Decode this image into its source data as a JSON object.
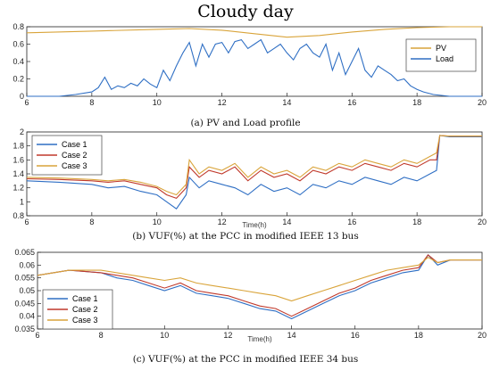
{
  "title": "Cloudy day",
  "colors": {
    "pv": "#D9A43A",
    "load": "#2F6FC4",
    "case1": "#2F6FC4",
    "case2": "#C0392B",
    "case3": "#D9A43A"
  },
  "chart_data": [
    {
      "type": "line",
      "caption": "(a) PV and Load profile",
      "xlabel": "",
      "ylabel": "",
      "xlim": [
        6,
        20
      ],
      "ylim": [
        0,
        0.8
      ],
      "xticks": [
        "6",
        "8",
        "10",
        "12",
        "14",
        "16",
        "18",
        "20"
      ],
      "yticks": [
        "0",
        "0.2",
        "0.4",
        "0.6",
        "0.8"
      ],
      "grid": false,
      "legend": "right",
      "series": [
        {
          "name": "PV",
          "x": [
            6,
            8,
            10,
            11,
            12,
            13,
            14,
            15,
            16,
            17,
            18,
            19,
            20
          ],
          "y": [
            0.73,
            0.75,
            0.77,
            0.78,
            0.76,
            0.72,
            0.68,
            0.7,
            0.74,
            0.77,
            0.79,
            0.8,
            0.8
          ]
        },
        {
          "name": "Load",
          "x": [
            6,
            7,
            7.5,
            8,
            8.2,
            8.4,
            8.6,
            8.8,
            9,
            9.2,
            9.4,
            9.6,
            9.8,
            10,
            10.2,
            10.4,
            10.6,
            10.8,
            11,
            11.2,
            11.4,
            11.6,
            11.8,
            12,
            12.2,
            12.4,
            12.6,
            12.8,
            13,
            13.2,
            13.4,
            13.6,
            13.8,
            14,
            14.2,
            14.4,
            14.6,
            14.8,
            15,
            15.2,
            15.4,
            15.6,
            15.8,
            16,
            16.2,
            16.4,
            16.6,
            16.8,
            17,
            17.2,
            17.4,
            17.6,
            17.8,
            18,
            18.2,
            18.5,
            19,
            20
          ],
          "y": [
            0,
            0,
            0.02,
            0.05,
            0.1,
            0.22,
            0.08,
            0.12,
            0.1,
            0.15,
            0.12,
            0.2,
            0.14,
            0.1,
            0.3,
            0.18,
            0.35,
            0.5,
            0.62,
            0.35,
            0.6,
            0.45,
            0.6,
            0.62,
            0.5,
            0.63,
            0.65,
            0.55,
            0.6,
            0.65,
            0.5,
            0.55,
            0.6,
            0.5,
            0.42,
            0.55,
            0.6,
            0.5,
            0.45,
            0.6,
            0.3,
            0.5,
            0.25,
            0.4,
            0.55,
            0.3,
            0.22,
            0.35,
            0.3,
            0.25,
            0.18,
            0.2,
            0.12,
            0.08,
            0.05,
            0.02,
            0,
            0
          ]
        }
      ]
    },
    {
      "type": "line",
      "caption": "(b) VUF(%) at the PCC in modified IEEE 13 bus",
      "xlabel": "Time(h)",
      "ylabel": "",
      "xlim": [
        6,
        20
      ],
      "ylim": [
        0.8,
        2.0
      ],
      "xticks": [
        "6",
        "8",
        "10",
        "12",
        "14",
        "16",
        "18",
        "20"
      ],
      "yticks": [
        "0.8",
        "1",
        "1.2",
        "1.4",
        "1.6",
        "1.8",
        "2"
      ],
      "grid": false,
      "legend": "top-left",
      "series": [
        {
          "name": "Case 1",
          "x": [
            6,
            7,
            8,
            8.5,
            9,
            9.5,
            10,
            10.3,
            10.6,
            10.9,
            11,
            11.3,
            11.6,
            12,
            12.4,
            12.8,
            13.2,
            13.6,
            14,
            14.4,
            14.8,
            15.2,
            15.6,
            16,
            16.4,
            16.8,
            17.2,
            17.6,
            18,
            18.4,
            18.6,
            18.7,
            19,
            20
          ],
          "y": [
            1.3,
            1.28,
            1.25,
            1.2,
            1.22,
            1.15,
            1.1,
            1.0,
            0.9,
            1.1,
            1.35,
            1.2,
            1.3,
            1.25,
            1.2,
            1.1,
            1.25,
            1.15,
            1.2,
            1.1,
            1.25,
            1.2,
            1.3,
            1.25,
            1.35,
            1.3,
            1.25,
            1.35,
            1.3,
            1.4,
            1.45,
            1.95,
            1.93,
            1.93
          ]
        },
        {
          "name": "Case 2",
          "x": [
            6,
            7,
            8,
            8.5,
            9,
            9.5,
            10,
            10.3,
            10.6,
            10.9,
            11,
            11.3,
            11.6,
            12,
            12.4,
            12.8,
            13.2,
            13.6,
            14,
            14.4,
            14.8,
            15.2,
            15.6,
            16,
            16.4,
            16.8,
            17.2,
            17.6,
            18,
            18.4,
            18.6,
            18.7,
            19,
            20
          ],
          "y": [
            1.33,
            1.32,
            1.3,
            1.28,
            1.3,
            1.25,
            1.2,
            1.1,
            1.05,
            1.2,
            1.5,
            1.35,
            1.45,
            1.4,
            1.5,
            1.3,
            1.45,
            1.35,
            1.4,
            1.3,
            1.45,
            1.4,
            1.5,
            1.45,
            1.55,
            1.5,
            1.45,
            1.55,
            1.5,
            1.6,
            1.6,
            1.95,
            1.94,
            1.94
          ]
        },
        {
          "name": "Case 3",
          "x": [
            6,
            7,
            8,
            8.5,
            9,
            9.5,
            10,
            10.3,
            10.6,
            10.9,
            11,
            11.3,
            11.6,
            12,
            12.4,
            12.8,
            13.2,
            13.6,
            14,
            14.4,
            14.8,
            15.2,
            15.6,
            16,
            16.4,
            16.8,
            17.2,
            17.6,
            18,
            18.4,
            18.6,
            18.7,
            19,
            20
          ],
          "y": [
            1.35,
            1.34,
            1.32,
            1.3,
            1.32,
            1.28,
            1.22,
            1.15,
            1.1,
            1.25,
            1.6,
            1.4,
            1.5,
            1.45,
            1.55,
            1.35,
            1.5,
            1.4,
            1.45,
            1.35,
            1.5,
            1.45,
            1.55,
            1.5,
            1.6,
            1.55,
            1.5,
            1.6,
            1.55,
            1.65,
            1.7,
            1.95,
            1.94,
            1.94
          ]
        }
      ]
    },
    {
      "type": "line",
      "caption": "(c) VUF(%) at the PCC in modified IEEE 34 bus",
      "xlabel": "Time(h)",
      "ylabel": "",
      "xlim": [
        6,
        20
      ],
      "ylim": [
        0.035,
        0.065
      ],
      "xticks": [
        "6",
        "8",
        "10",
        "12",
        "14",
        "16",
        "18",
        "20"
      ],
      "yticks": [
        "0.035",
        "0.04",
        "0.045",
        "0.05",
        "0.055",
        "0.06",
        "0.065"
      ],
      "grid": false,
      "legend": "bottom-left",
      "series": [
        {
          "name": "Case 1",
          "x": [
            6,
            7,
            8,
            8.5,
            9,
            9.5,
            10,
            10.5,
            11,
            11.5,
            12,
            12.5,
            13,
            13.5,
            14,
            14.5,
            15,
            15.5,
            16,
            16.5,
            17,
            17.5,
            18,
            18.3,
            18.6,
            19,
            20
          ],
          "y": [
            0.056,
            0.058,
            0.057,
            0.055,
            0.054,
            0.052,
            0.05,
            0.052,
            0.049,
            0.048,
            0.047,
            0.045,
            0.043,
            0.042,
            0.039,
            0.042,
            0.045,
            0.048,
            0.05,
            0.053,
            0.055,
            0.057,
            0.058,
            0.064,
            0.06,
            0.062,
            0.062
          ]
        },
        {
          "name": "Case 2",
          "x": [
            6,
            7,
            8,
            8.5,
            9,
            9.5,
            10,
            10.5,
            11,
            11.5,
            12,
            12.5,
            13,
            13.5,
            14,
            14.5,
            15,
            15.5,
            16,
            16.5,
            17,
            17.5,
            18,
            18.3,
            18.6,
            19,
            20
          ],
          "y": [
            0.056,
            0.058,
            0.057,
            0.056,
            0.055,
            0.053,
            0.051,
            0.053,
            0.05,
            0.049,
            0.048,
            0.046,
            0.044,
            0.043,
            0.04,
            0.043,
            0.046,
            0.049,
            0.051,
            0.054,
            0.056,
            0.058,
            0.059,
            0.064,
            0.061,
            0.062,
            0.062
          ]
        },
        {
          "name": "Case 3",
          "x": [
            6,
            7,
            8,
            8.5,
            9,
            9.5,
            10,
            10.5,
            11,
            11.5,
            12,
            12.5,
            13,
            13.5,
            14,
            14.5,
            15,
            15.5,
            16,
            16.5,
            17,
            17.5,
            18,
            18.3,
            18.6,
            19,
            20
          ],
          "y": [
            0.056,
            0.058,
            0.058,
            0.057,
            0.056,
            0.055,
            0.054,
            0.055,
            0.053,
            0.052,
            0.051,
            0.05,
            0.049,
            0.048,
            0.046,
            0.048,
            0.05,
            0.052,
            0.054,
            0.056,
            0.058,
            0.059,
            0.06,
            0.063,
            0.061,
            0.062,
            0.062
          ]
        }
      ]
    }
  ]
}
